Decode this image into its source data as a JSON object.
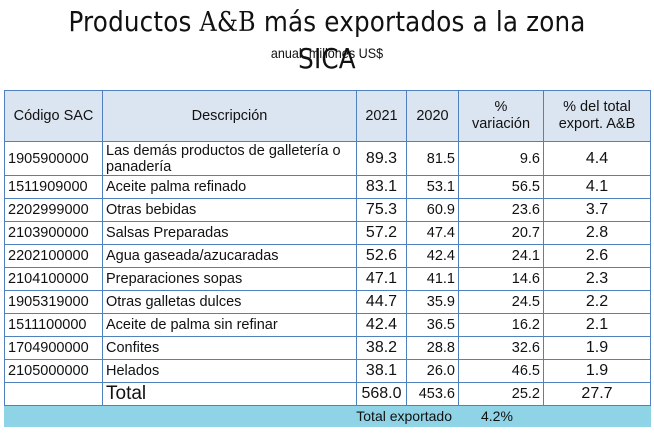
{
  "title": {
    "text": "Productos ",
    "brand": "A&B",
    "rest": " más exportados a la zona SICA"
  },
  "subtitle": {
    "period": "anual",
    "unit": "millones US$"
  },
  "table": {
    "headers": {
      "code": "Código SAC",
      "description": "Descripción",
      "y2021": "2021",
      "y2020": "2020",
      "variation_line1": "%",
      "variation_line2": "variación",
      "share_line1": "% del total",
      "share_line2": "export. A&B"
    },
    "rows": [
      {
        "code": "1905900000",
        "description": "Las demás productos de galletería o panadería",
        "y2021": "89.3",
        "y2020": "81.5",
        "variation": "9.6",
        "share": "4.4"
      },
      {
        "code": "1511909000",
        "description": "Aceite palma refinado",
        "y2021": "83.1",
        "y2020": "53.1",
        "variation": "56.5",
        "share": "4.1"
      },
      {
        "code": "2202999000",
        "description": "Otras bebidas",
        "y2021": "75.3",
        "y2020": "60.9",
        "variation": "23.6",
        "share": "3.7"
      },
      {
        "code": "2103900000",
        "description": "Salsas Preparadas",
        "y2021": "57.2",
        "y2020": "47.4",
        "variation": "20.7",
        "share": "2.8"
      },
      {
        "code": "2202100000",
        "description": "Agua gaseada/azucaradas",
        "y2021": "52.6",
        "y2020": "42.4",
        "variation": "24.1",
        "share": "2.6"
      },
      {
        "code": "2104100000",
        "description": "Preparaciones sopas",
        "y2021": "47.1",
        "y2020": "41.1",
        "variation": "14.6",
        "share": "2.3"
      },
      {
        "code": "1905319000",
        "description": "Otras galletas dulces",
        "y2021": "44.7",
        "y2020": "35.9",
        "variation": "24.5",
        "share": "2.2"
      },
      {
        "code": "1511100000",
        "description": "Aceite de palma sin refinar",
        "y2021": "42.4",
        "y2020": "36.5",
        "variation": "16.2",
        "share": "2.1"
      },
      {
        "code": "1704900000",
        "description": "Confites",
        "y2021": "38.2",
        "y2020": "28.8",
        "variation": "32.6",
        "share": "1.9"
      },
      {
        "code": "2105000000",
        "description": "Helados",
        "y2021": "38.1",
        "y2020": "26.0",
        "variation": "46.5",
        "share": "1.9"
      }
    ],
    "total": {
      "label": "Total",
      "y2021": "568.0",
      "y2020": "453.6",
      "variation": "25.2",
      "share": "27.7"
    },
    "summary": {
      "label": "Total exportado",
      "value": "4.2%"
    }
  },
  "colors": {
    "header_bg": "#dbe5f1",
    "border": "#4f81bd",
    "summary_bg": "#8fd3e6"
  }
}
